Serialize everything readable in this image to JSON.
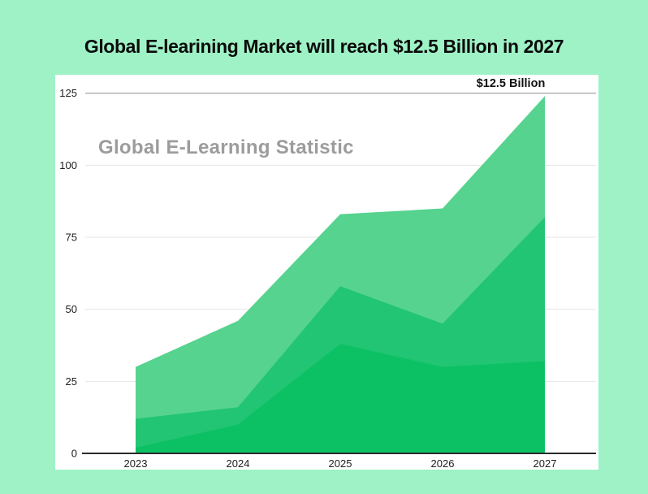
{
  "page": {
    "title": "Global E-learining Market will reach $12.5 Billion in 2027"
  },
  "colors": {
    "background": "#9ef2c6",
    "card": "#ffffff",
    "title_text": "#0b0b0b",
    "watermark_text": "#9c9c9c",
    "annotation_text": "#111111",
    "grid_light": "#e4e4e4",
    "grid_strong": "#ababab",
    "axis": "#2b2b2b",
    "tick_label": "#1d1d1d"
  },
  "chart_data": {
    "type": "area",
    "title": "Global E-learining Market will reach $12.5 Billion in 2027",
    "watermark": "Global E-Learning Statistic",
    "annotation": "$12.5 Billion",
    "categories": [
      "2023",
      "2024",
      "2025",
      "2026",
      "2027"
    ],
    "series": [
      {
        "name": "layer-top",
        "color": "#56d38e",
        "values": [
          30,
          46,
          83,
          85,
          124
        ]
      },
      {
        "name": "layer-middle",
        "color": "#21c573",
        "values": [
          12,
          16,
          58,
          45,
          82
        ]
      },
      {
        "name": "layer-bottom",
        "color": "#0cc164",
        "values": [
          2,
          10,
          38,
          30,
          32
        ]
      }
    ],
    "y_ticks": [
      0,
      25,
      50,
      75,
      100,
      125
    ],
    "ylim": [
      0,
      125
    ],
    "xlabel": "",
    "ylabel": "",
    "grid": true,
    "legend": "none"
  }
}
